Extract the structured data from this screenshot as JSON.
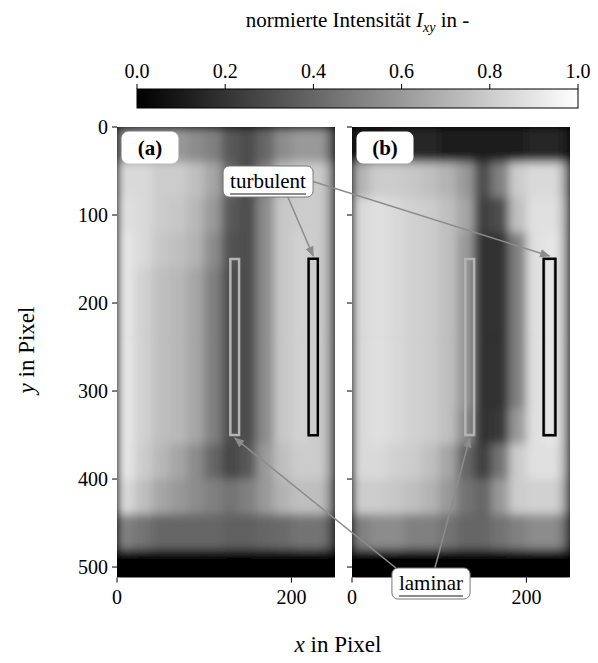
{
  "chart_data": {
    "type": "heatmap",
    "colorbar": {
      "text": "normierte Intensität ",
      "symbol": "I",
      "subscript": "xy",
      "unit": " in -",
      "range": [
        0,
        1
      ],
      "ticks": [
        {
          "value": 0,
          "label": "0.0"
        },
        0.2,
        0.4,
        0.6,
        0.8,
        {
          "value": 1,
          "label": "1.0"
        }
      ]
    },
    "xlabel": {
      "symbol": "x",
      "text": " in Pixel"
    },
    "ylabel": {
      "symbol": "y",
      "text": " in Pixel"
    },
    "xlim": [
      0,
      250
    ],
    "ylim": [
      0,
      512
    ],
    "xticks": [
      0,
      200
    ],
    "yticks": [
      0,
      100,
      200,
      300,
      400,
      500
    ],
    "x_edges": [
      0,
      20,
      40,
      60,
      80,
      100,
      120,
      140,
      160,
      180,
      200,
      220,
      240,
      250
    ],
    "y_edges": [
      0,
      40,
      80,
      120,
      160,
      200,
      240,
      280,
      320,
      360,
      400,
      440,
      480,
      512
    ],
    "panels": [
      {
        "label": "(a)",
        "cells": [
          [
            0.55,
            0.6,
            0.6,
            0.6,
            0.55,
            0.5,
            0.35,
            0.3,
            0.4,
            0.55,
            0.6,
            0.6,
            0.4
          ],
          [
            0.85,
            0.85,
            0.8,
            0.8,
            0.75,
            0.65,
            0.4,
            0.3,
            0.5,
            0.75,
            0.8,
            0.8,
            0.6
          ],
          [
            0.88,
            0.85,
            0.8,
            0.78,
            0.72,
            0.6,
            0.35,
            0.3,
            0.55,
            0.78,
            0.8,
            0.8,
            0.6
          ],
          [
            0.9,
            0.85,
            0.78,
            0.75,
            0.7,
            0.55,
            0.32,
            0.3,
            0.55,
            0.78,
            0.82,
            0.8,
            0.6
          ],
          [
            0.9,
            0.82,
            0.75,
            0.72,
            0.65,
            0.5,
            0.3,
            0.3,
            0.55,
            0.78,
            0.82,
            0.8,
            0.6
          ],
          [
            0.9,
            0.82,
            0.75,
            0.72,
            0.65,
            0.5,
            0.3,
            0.3,
            0.55,
            0.78,
            0.82,
            0.8,
            0.6
          ],
          [
            0.9,
            0.82,
            0.75,
            0.72,
            0.65,
            0.5,
            0.3,
            0.3,
            0.55,
            0.78,
            0.82,
            0.8,
            0.6
          ],
          [
            0.9,
            0.82,
            0.75,
            0.72,
            0.65,
            0.5,
            0.3,
            0.3,
            0.55,
            0.78,
            0.82,
            0.8,
            0.6
          ],
          [
            0.9,
            0.82,
            0.75,
            0.72,
            0.65,
            0.5,
            0.3,
            0.3,
            0.55,
            0.78,
            0.82,
            0.8,
            0.6
          ],
          [
            0.9,
            0.8,
            0.72,
            0.65,
            0.55,
            0.4,
            0.28,
            0.35,
            0.6,
            0.75,
            0.8,
            0.8,
            0.6
          ],
          [
            0.85,
            0.75,
            0.65,
            0.6,
            0.55,
            0.5,
            0.45,
            0.5,
            0.6,
            0.7,
            0.75,
            0.75,
            0.55
          ],
          [
            0.5,
            0.45,
            0.4,
            0.4,
            0.4,
            0.4,
            0.38,
            0.38,
            0.4,
            0.42,
            0.45,
            0.45,
            0.35
          ],
          [
            0.02,
            0.02,
            0.02,
            0.02,
            0.02,
            0.02,
            0.02,
            0.02,
            0.02,
            0.02,
            0.02,
            0.02,
            0.02
          ]
        ]
      },
      {
        "label": "(b)",
        "cells": [
          [
            0.1,
            0.12,
            0.15,
            0.15,
            0.15,
            0.12,
            0.1,
            0.1,
            0.1,
            0.12,
            0.15,
            0.15,
            0.1
          ],
          [
            0.7,
            0.8,
            0.8,
            0.78,
            0.75,
            0.7,
            0.6,
            0.3,
            0.5,
            0.8,
            0.85,
            0.85,
            0.6
          ],
          [
            0.85,
            0.88,
            0.85,
            0.82,
            0.8,
            0.75,
            0.65,
            0.25,
            0.3,
            0.75,
            0.88,
            0.88,
            0.65
          ],
          [
            0.85,
            0.88,
            0.85,
            0.82,
            0.8,
            0.75,
            0.6,
            0.2,
            0.2,
            0.5,
            0.88,
            0.9,
            0.65
          ],
          [
            0.85,
            0.88,
            0.85,
            0.82,
            0.8,
            0.75,
            0.6,
            0.2,
            0.2,
            0.5,
            0.88,
            0.9,
            0.65
          ],
          [
            0.85,
            0.88,
            0.85,
            0.82,
            0.8,
            0.75,
            0.6,
            0.2,
            0.2,
            0.5,
            0.88,
            0.9,
            0.65
          ],
          [
            0.85,
            0.88,
            0.85,
            0.82,
            0.8,
            0.75,
            0.6,
            0.2,
            0.2,
            0.5,
            0.88,
            0.9,
            0.65
          ],
          [
            0.85,
            0.88,
            0.85,
            0.82,
            0.8,
            0.75,
            0.6,
            0.2,
            0.2,
            0.5,
            0.88,
            0.9,
            0.65
          ],
          [
            0.85,
            0.88,
            0.85,
            0.82,
            0.8,
            0.75,
            0.55,
            0.2,
            0.22,
            0.6,
            0.88,
            0.9,
            0.65
          ],
          [
            0.85,
            0.85,
            0.82,
            0.8,
            0.75,
            0.65,
            0.4,
            0.25,
            0.45,
            0.8,
            0.88,
            0.88,
            0.65
          ],
          [
            0.8,
            0.8,
            0.78,
            0.75,
            0.7,
            0.6,
            0.45,
            0.4,
            0.6,
            0.8,
            0.82,
            0.82,
            0.6
          ],
          [
            0.5,
            0.55,
            0.55,
            0.5,
            0.5,
            0.45,
            0.4,
            0.4,
            0.45,
            0.5,
            0.55,
            0.55,
            0.4
          ],
          [
            0.02,
            0.02,
            0.02,
            0.02,
            0.02,
            0.02,
            0.02,
            0.02,
            0.02,
            0.02,
            0.02,
            0.02,
            0.02
          ]
        ]
      }
    ],
    "annotations": [
      {
        "text": "turbulent",
        "regions": [
          {
            "x": [
              220,
              230
            ],
            "y": [
              150,
              350
            ]
          },
          {
            "x": [
              220,
              233
            ],
            "y": [
              150,
              350
            ]
          }
        ]
      },
      {
        "text": "laminar",
        "regions": [
          {
            "x": [
              130,
              140
            ],
            "y": [
              150,
              350
            ]
          },
          {
            "x": [
              130,
              140
            ],
            "y": [
              150,
              350
            ]
          }
        ]
      }
    ]
  }
}
